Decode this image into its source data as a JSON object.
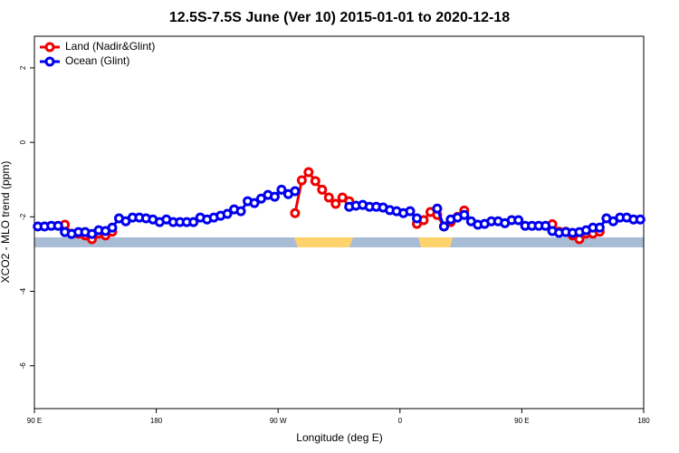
{
  "chart_data": {
    "type": "line",
    "title": "12.5S-7.5S June (Ver 10)   2015-01-01 to 2020-12-18",
    "x_label": "Longitude (deg E)",
    "y_label": "XCO2 - MLO trend (ppm)",
    "x": [
      92.5,
      97.5,
      102.5,
      107.5,
      112.5,
      117.5,
      122.5,
      127.5,
      132.5,
      137.5,
      142.5,
      147.5,
      152.5,
      157.5,
      162.5,
      167.5,
      172.5,
      177.5,
      182.5,
      187.5,
      192.5,
      197.5,
      202.5,
      207.5,
      212.5,
      217.5,
      222.5,
      227.5,
      232.5,
      237.5,
      242.5,
      247.5,
      252.5,
      257.5,
      262.5,
      267.5,
      272.5,
      277.5,
      282.5,
      287.5,
      292.5,
      297.5,
      302.5,
      307.5,
      312.5,
      317.5,
      322.5,
      327.5,
      332.5,
      337.5,
      342.5,
      347.5,
      352.5,
      357.5,
      362.5,
      367.5,
      372.5,
      377.5,
      382.5,
      387.5,
      392.5,
      397.5,
      402.5,
      407.5,
      412.5,
      417.5,
      422.5,
      427.5,
      432.5,
      437.5,
      442.5,
      447.5,
      452.5,
      457.5,
      462.5,
      467.5,
      472.5,
      477.5,
      482.5,
      487.5,
      492.5,
      497.5,
      502.5,
      507.5,
      512.5,
      517.5,
      522.5,
      527.5,
      532.5,
      537.5
    ],
    "series": [
      {
        "name": "Land (Nadir&Glint)",
        "color": "#ee0000",
        "values": [
          null,
          null,
          null,
          null,
          -2.21,
          -2.45,
          -2.45,
          -2.5,
          -2.6,
          -2.45,
          -2.5,
          -2.4,
          null,
          null,
          null,
          null,
          null,
          null,
          null,
          null,
          null,
          null,
          null,
          null,
          null,
          null,
          null,
          null,
          null,
          null,
          null,
          null,
          null,
          null,
          null,
          null,
          null,
          null,
          -1.9,
          -1.02,
          -0.8,
          -1.04,
          -1.27,
          -1.48,
          -1.65,
          -1.48,
          -1.58,
          null,
          null,
          null,
          null,
          null,
          null,
          null,
          null,
          null,
          -2.19,
          -2.09,
          -1.87,
          -1.95,
          -2.26,
          -2.14,
          -2.0,
          -1.83,
          null,
          null,
          null,
          null,
          null,
          null,
          null,
          null,
          null,
          null,
          null,
          null,
          -2.2,
          -2.4,
          -2.4,
          -2.5,
          -2.6,
          -2.45,
          -2.45,
          -2.4,
          null,
          null,
          null,
          null,
          null,
          null
        ]
      },
      {
        "name": "Ocean (Glint)",
        "color": "#0000ee",
        "values": [
          -2.26,
          -2.26,
          -2.24,
          -2.24,
          -2.41,
          -2.46,
          -2.41,
          -2.41,
          -2.46,
          -2.36,
          -2.38,
          -2.29,
          -2.04,
          -2.12,
          -2.02,
          -2.02,
          -2.04,
          -2.07,
          -2.14,
          -2.07,
          -2.14,
          -2.14,
          -2.14,
          -2.14,
          -2.02,
          -2.07,
          -2.02,
          -1.97,
          -1.92,
          -1.8,
          -1.85,
          -1.58,
          -1.63,
          -1.51,
          -1.41,
          -1.46,
          -1.27,
          -1.39,
          -1.31,
          null,
          null,
          null,
          null,
          null,
          null,
          null,
          -1.73,
          -1.7,
          -1.68,
          -1.73,
          -1.73,
          -1.75,
          -1.82,
          -1.85,
          -1.9,
          -1.85,
          -2.04,
          null,
          null,
          -1.78,
          -2.26,
          -2.07,
          -2.02,
          -1.95,
          -2.12,
          -2.21,
          -2.19,
          -2.12,
          -2.12,
          -2.17,
          -2.09,
          -2.09,
          -2.24,
          -2.24,
          -2.24,
          -2.24,
          -2.38,
          -2.43,
          -2.41,
          -2.43,
          -2.41,
          -2.36,
          -2.29,
          -2.29,
          -2.04,
          -2.12,
          -2.02,
          -2.02,
          -2.07,
          -2.07
        ]
      }
    ],
    "xlim": [
      90,
      540
    ],
    "xticks": [
      {
        "value": 90,
        "label": "90 E"
      },
      180,
      {
        "value": 270,
        "label": "90 W"
      },
      {
        "value": 360,
        "label": "0"
      },
      {
        "value": 450,
        "label": "90 E"
      },
      {
        "value": 540,
        "label": "180"
      }
    ],
    "ylim": [
      -7.15,
      2.85
    ],
    "yticks": [
      2,
      0,
      -2,
      -4,
      -6
    ],
    "legend": "top-left"
  }
}
